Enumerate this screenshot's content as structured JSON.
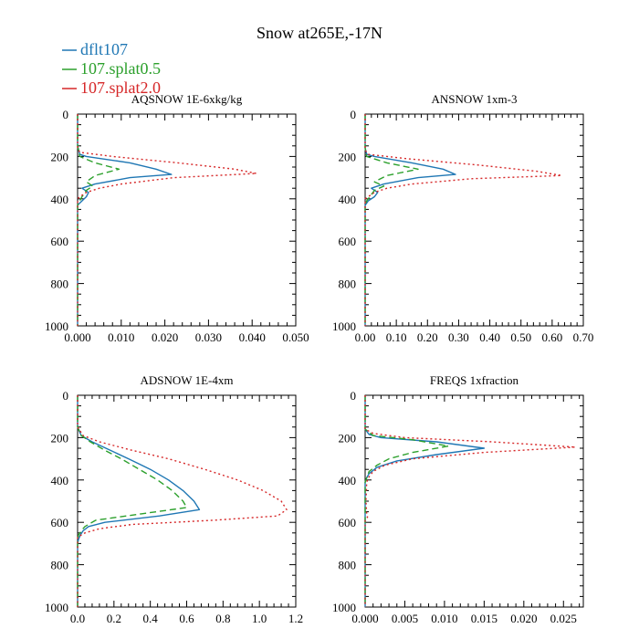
{
  "title": "Snow at265E,-17N",
  "legend": [
    {
      "label": "dflt107",
      "color": "#1f77b4",
      "dash": "solid"
    },
    {
      "label": "107.splat0.5",
      "color": "#2ca02c",
      "dash": "dashed"
    },
    {
      "label": "107.splat2.0",
      "color": "#d62728",
      "dash": "dotted"
    }
  ],
  "chart_data": [
    {
      "type": "line",
      "title": "AQSNOW  1E-6xkg/kg",
      "xlim": [
        0,
        0.05
      ],
      "ylim": [
        1000,
        0
      ],
      "xticks": [
        0,
        0.01,
        0.02,
        0.03,
        0.04,
        0.05
      ],
      "xtick_labels": [
        "0.000",
        "0.010",
        "0.020",
        "0.030",
        "0.040",
        "0.050"
      ],
      "yticks": [
        0,
        200,
        400,
        600,
        800,
        1000
      ],
      "ytick_labels": [
        "0",
        "200",
        "400",
        "600",
        "800",
        "1000"
      ],
      "series": [
        {
          "name": "dflt107",
          "y": [
            0,
            150,
            190,
            200,
            230,
            260,
            285,
            300,
            330,
            350,
            370,
            390,
            410,
            430,
            1000
          ],
          "x": [
            0,
            0,
            0.0005,
            0.002,
            0.012,
            0.018,
            0.0215,
            0.012,
            0.004,
            0.001,
            0.0025,
            0.002,
            0.001,
            0,
            0
          ]
        },
        {
          "name": "107.splat0.5",
          "y": [
            0,
            150,
            200,
            230,
            260,
            290,
            320,
            340,
            360,
            390,
            410,
            430,
            1000
          ],
          "x": [
            0,
            0,
            0.0005,
            0.004,
            0.0095,
            0.004,
            0.002,
            0.0035,
            0.002,
            0.001,
            0.0005,
            0,
            0
          ]
        },
        {
          "name": "107.splat2.0",
          "y": [
            0,
            160,
            180,
            200,
            230,
            260,
            280,
            300,
            330,
            350,
            370,
            390,
            400,
            1000
          ],
          "x": [
            0,
            0,
            0.0005,
            0.008,
            0.023,
            0.036,
            0.041,
            0.022,
            0.01,
            0.005,
            0.002,
            0.0005,
            0,
            0
          ]
        }
      ]
    },
    {
      "type": "line",
      "title": "ANSNOW  1xm-3",
      "xlim": [
        0,
        0.7
      ],
      "ylim": [
        1000,
        0
      ],
      "xticks": [
        0,
        0.1,
        0.2,
        0.3,
        0.4,
        0.5,
        0.6,
        0.7
      ],
      "xtick_labels": [
        "0.00",
        "0.10",
        "0.20",
        "0.30",
        "0.40",
        "0.50",
        "0.60",
        "0.70"
      ],
      "yticks": [
        0,
        200,
        400,
        600,
        800,
        1000
      ],
      "ytick_labels": [
        "0",
        "200",
        "400",
        "600",
        "800",
        "1000"
      ],
      "series": [
        {
          "name": "dflt107",
          "y": [
            0,
            160,
            190,
            200,
            230,
            260,
            285,
            300,
            330,
            350,
            370,
            390,
            410,
            430,
            1000
          ],
          "x": [
            0,
            0,
            0.005,
            0.03,
            0.15,
            0.25,
            0.29,
            0.17,
            0.06,
            0.02,
            0.04,
            0.03,
            0.01,
            0,
            0
          ]
        },
        {
          "name": "107.splat0.5",
          "y": [
            0,
            160,
            200,
            230,
            260,
            290,
            320,
            340,
            360,
            390,
            410,
            430,
            1000
          ],
          "x": [
            0,
            0,
            0.005,
            0.07,
            0.17,
            0.07,
            0.03,
            0.06,
            0.03,
            0.015,
            0.005,
            0,
            0
          ]
        },
        {
          "name": "107.splat2.0",
          "y": [
            0,
            170,
            190,
            210,
            240,
            270,
            290,
            305,
            330,
            350,
            370,
            390,
            400,
            1000
          ],
          "x": [
            0,
            0,
            0.01,
            0.13,
            0.36,
            0.55,
            0.63,
            0.34,
            0.15,
            0.07,
            0.03,
            0.01,
            0,
            0
          ]
        }
      ]
    },
    {
      "type": "line",
      "title": "ADSNOW  1E-4xm",
      "xlim": [
        0,
        1.2
      ],
      "ylim": [
        1000,
        0
      ],
      "xticks": [
        0,
        0.2,
        0.4,
        0.6,
        0.8,
        1.0,
        1.2
      ],
      "xtick_labels": [
        "0.0",
        "0.2",
        "0.4",
        "0.6",
        "0.8",
        "1.0",
        "1.2"
      ],
      "yticks": [
        0,
        200,
        400,
        600,
        800,
        1000
      ],
      "ytick_labels": [
        "0",
        "200",
        "400",
        "600",
        "800",
        "1000"
      ],
      "series": [
        {
          "name": "dflt107",
          "y": [
            0,
            150,
            190,
            220,
            260,
            300,
            350,
            400,
            450,
            500,
            540,
            570,
            600,
            620,
            640,
            660,
            680,
            700,
            1000
          ],
          "x": [
            0,
            0,
            0.02,
            0.08,
            0.18,
            0.28,
            0.4,
            0.5,
            0.58,
            0.64,
            0.67,
            0.45,
            0.15,
            0.06,
            0.03,
            0.015,
            0.005,
            0,
            0
          ]
        },
        {
          "name": "107.splat0.5",
          "y": [
            0,
            150,
            190,
            220,
            260,
            300,
            350,
            400,
            450,
            500,
            530,
            560,
            590,
            620,
            640,
            660,
            680,
            1000
          ],
          "x": [
            0,
            0,
            0.02,
            0.07,
            0.15,
            0.24,
            0.34,
            0.44,
            0.52,
            0.58,
            0.6,
            0.35,
            0.1,
            0.04,
            0.02,
            0.005,
            0,
            0
          ]
        },
        {
          "name": "107.splat2.0",
          "y": [
            0,
            150,
            190,
            220,
            260,
            300,
            350,
            400,
            450,
            500,
            540,
            570,
            590,
            610,
            630,
            650,
            670,
            1000
          ],
          "x": [
            0,
            0,
            0.03,
            0.12,
            0.3,
            0.5,
            0.7,
            0.88,
            1.02,
            1.12,
            1.15,
            1.1,
            0.75,
            0.3,
            0.12,
            0.04,
            0,
            0
          ]
        }
      ]
    },
    {
      "type": "line",
      "title": "FREQS  1xfraction",
      "xlim": [
        0,
        0.0275
      ],
      "ylim": [
        1000,
        0
      ],
      "xticks": [
        0,
        0.005,
        0.01,
        0.015,
        0.02,
        0.025
      ],
      "xtick_labels": [
        "0.000",
        "0.005",
        "0.010",
        "0.015",
        "0.020",
        "0.025"
      ],
      "yticks": [
        0,
        200,
        400,
        600,
        800,
        1000
      ],
      "ytick_labels": [
        "0",
        "200",
        "400",
        "600",
        "800",
        "1000"
      ],
      "series": [
        {
          "name": "dflt107",
          "y": [
            0,
            160,
            185,
            200,
            220,
            250,
            280,
            310,
            340,
            370,
            390,
            410,
            1000
          ],
          "x": [
            0,
            0,
            0.0005,
            0.002,
            0.009,
            0.015,
            0.009,
            0.004,
            0.0015,
            0.0005,
            0.0002,
            0,
            0
          ]
        },
        {
          "name": "107.splat0.5",
          "y": [
            0,
            160,
            190,
            210,
            240,
            270,
            300,
            330,
            360,
            390,
            410,
            1000
          ],
          "x": [
            0,
            0,
            0.001,
            0.006,
            0.0105,
            0.006,
            0.003,
            0.0015,
            0.0005,
            0.0002,
            0,
            0
          ]
        },
        {
          "name": "107.splat2.0",
          "y": [
            0,
            160,
            180,
            200,
            220,
            245,
            270,
            300,
            330,
            360,
            390,
            410,
            500,
            560,
            575,
            590,
            1000
          ],
          "x": [
            0,
            0,
            0.001,
            0.005,
            0.016,
            0.0265,
            0.015,
            0.006,
            0.0025,
            0.001,
            0.0004,
            0.0002,
            0.0001,
            0.0002,
            0.0003,
            0,
            0
          ]
        }
      ]
    }
  ]
}
